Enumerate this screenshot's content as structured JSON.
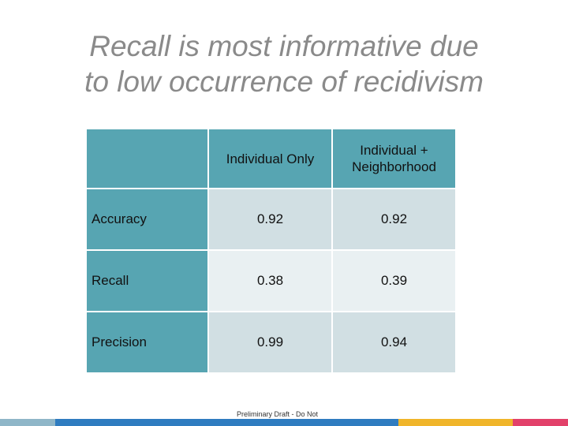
{
  "slide": {
    "title_line1": "Recall is most informative due",
    "title_line2": "to low occurrence of recidivism"
  },
  "table": {
    "headers": [
      "",
      "Individual Only",
      "Individual +\nNeighborhood"
    ],
    "rows": [
      {
        "label": "Accuracy",
        "values": [
          "0.92",
          "0.92"
        ]
      },
      {
        "label": "Recall",
        "values": [
          "0.38",
          "0.39"
        ]
      },
      {
        "label": "Precision",
        "values": [
          "0.99",
          "0.94"
        ]
      }
    ]
  },
  "footer": {
    "note": "Preliminary Draft - Do Not"
  },
  "colors": {
    "header_fill": "#57a5b2",
    "row_fill_dark": "#d1dfe3",
    "row_fill_light": "#e9f0f2",
    "title": "#8a8a8a",
    "bottom_bar": [
      "#8fb6c8",
      "#2f7cc0",
      "#f0b52a",
      "#e2416a"
    ]
  }
}
